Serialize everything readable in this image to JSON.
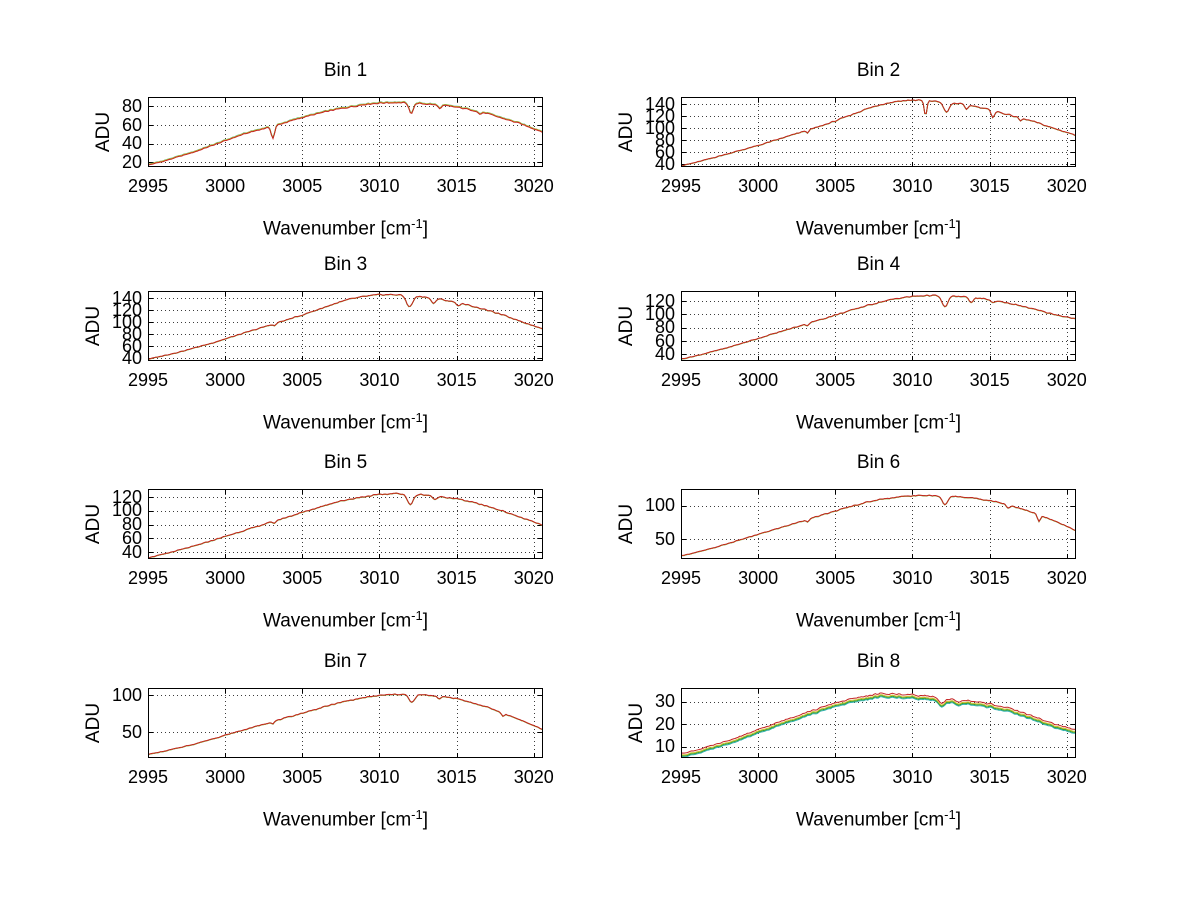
{
  "figure": {
    "background": "#ffffff",
    "text_color": "#000000",
    "axis_color": "#000000",
    "grid_color": "#3c3c3c",
    "grid_style": "dotted",
    "ylabel": "ADU",
    "xlabel_prefix": "Wavenumber [cm",
    "xlabel_sup": "-1",
    "xlabel_suffix": "]",
    "xticks": [
      2995,
      3000,
      3005,
      3010,
      3015,
      3020
    ],
    "xlim": [
      2995,
      3020.6
    ]
  },
  "chart_data": [
    {
      "type": "line",
      "title": "Bin 1",
      "ylabel": "ADU",
      "xlabel": "Wavenumber [cm^-1]",
      "ylim": [
        15,
        90
      ],
      "yticks": [
        20,
        40,
        60,
        80
      ],
      "x_start": 2995,
      "x_step": 1,
      "envelope": [
        17,
        21,
        26,
        31,
        37,
        43,
        49,
        54,
        58,
        63,
        68,
        72,
        76,
        79,
        82,
        83.5,
        84,
        83.5,
        82.5,
        81,
        79,
        76,
        72,
        67,
        62,
        56
      ],
      "dips": [
        {
          "x": 3003.1,
          "depth": 13,
          "width": 0.15
        },
        {
          "x": 3012.05,
          "depth": 11,
          "width": 0.2
        },
        {
          "x": 3013.9,
          "depth": 3.5,
          "width": 0.15
        },
        {
          "x": 3016.5,
          "depth": 2.5,
          "width": 0.15
        }
      ],
      "noise": 0.9,
      "series": [
        {
          "label": "trace-cyan",
          "color": "#2FAFAF",
          "offset": 0.9
        },
        {
          "label": "trace-green",
          "color": "#2E9E2E",
          "offset": 0.5
        },
        {
          "label": "trace-yellow",
          "color": "#CDBE2A",
          "offset": 0.65
        },
        {
          "label": "trace-red",
          "color": "#C42222",
          "offset": 0
        }
      ]
    },
    {
      "type": "line",
      "title": "Bin 2",
      "ylabel": "ADU",
      "xlabel": "Wavenumber [cm^-1]",
      "ylim": [
        35,
        152
      ],
      "yticks": [
        40,
        60,
        80,
        100,
        120,
        140
      ],
      "x_start": 2995,
      "x_step": 1,
      "envelope": [
        37,
        43,
        50,
        57,
        64,
        71,
        79,
        87,
        95,
        103,
        112,
        122,
        132,
        140,
        145,
        147,
        146,
        144,
        141,
        137,
        131,
        124,
        117,
        110,
        101,
        93
      ],
      "dips": [
        {
          "x": 3003.2,
          "depth": 4,
          "width": 0.12
        },
        {
          "x": 3010.85,
          "depth": 26,
          "width": 0.12
        },
        {
          "x": 3012.2,
          "depth": 17,
          "width": 0.25
        },
        {
          "x": 3013.5,
          "depth": 7,
          "width": 0.15
        },
        {
          "x": 3015.2,
          "depth": 11,
          "width": 0.15
        },
        {
          "x": 3017.0,
          "depth": 5,
          "width": 0.12
        }
      ],
      "noise": 1.3,
      "series": [
        {
          "label": "trace-cyan",
          "color": "#2FAFAF",
          "offset": -0.4
        },
        {
          "label": "trace-green",
          "color": "#2E9E2E",
          "offset": -0.25
        },
        {
          "label": "trace-yellow",
          "color": "#CDBE2A",
          "offset": -0.3
        },
        {
          "label": "trace-red",
          "color": "#C42222",
          "offset": 0
        }
      ]
    },
    {
      "type": "line",
      "title": "Bin 3",
      "ylabel": "ADU",
      "xlabel": "Wavenumber [cm^-1]",
      "ylim": [
        35,
        152
      ],
      "yticks": [
        40,
        60,
        80,
        100,
        120,
        140
      ],
      "x_start": 2995,
      "x_step": 1,
      "envelope": [
        38,
        44,
        50,
        57,
        64,
        72,
        80,
        88,
        96,
        104,
        112,
        121,
        130,
        138,
        143,
        146,
        146,
        144.5,
        142,
        138,
        133,
        127,
        120,
        112,
        103,
        94
      ],
      "dips": [
        {
          "x": 3003.2,
          "depth": 4,
          "width": 0.12
        },
        {
          "x": 3011.95,
          "depth": 19,
          "width": 0.28
        },
        {
          "x": 3013.5,
          "depth": 9,
          "width": 0.18
        },
        {
          "x": 3015.1,
          "depth": 5,
          "width": 0.15
        }
      ],
      "noise": 1.2,
      "series": [
        {
          "label": "trace-cyan",
          "color": "#2FAFAF",
          "offset": -0.4
        },
        {
          "label": "trace-green",
          "color": "#2E9E2E",
          "offset": -0.25
        },
        {
          "label": "trace-yellow",
          "color": "#CDBE2A",
          "offset": -0.3
        },
        {
          "label": "trace-red",
          "color": "#C42222",
          "offset": 0
        }
      ]
    },
    {
      "type": "line",
      "title": "Bin 4",
      "ylabel": "ADU",
      "xlabel": "Wavenumber [cm^-1]",
      "ylim": [
        30,
        135
      ],
      "yticks": [
        40,
        60,
        80,
        100,
        120
      ],
      "x_start": 2995,
      "x_step": 1,
      "envelope": [
        33,
        38,
        44,
        50,
        57,
        64,
        71,
        78,
        85,
        92,
        99,
        106,
        113,
        119,
        124,
        127,
        128.5,
        128,
        127,
        125,
        122,
        118,
        113,
        107,
        101,
        96
      ],
      "dips": [
        {
          "x": 3003.2,
          "depth": 3,
          "width": 0.12
        },
        {
          "x": 3012.1,
          "depth": 17,
          "width": 0.26
        },
        {
          "x": 3013.8,
          "depth": 7,
          "width": 0.18
        },
        {
          "x": 3015.2,
          "depth": 4,
          "width": 0.15
        }
      ],
      "noise": 1.1,
      "series": [
        {
          "label": "trace-cyan",
          "color": "#2FAFAF",
          "offset": -0.4
        },
        {
          "label": "trace-green",
          "color": "#2E9E2E",
          "offset": -0.25
        },
        {
          "label": "trace-yellow",
          "color": "#CDBE2A",
          "offset": -0.3
        },
        {
          "label": "trace-red",
          "color": "#C42222",
          "offset": 0
        }
      ]
    },
    {
      "type": "line",
      "title": "Bin 5",
      "ylabel": "ADU",
      "xlabel": "Wavenumber [cm^-1]",
      "ylim": [
        30,
        132
      ],
      "yticks": [
        40,
        60,
        80,
        100,
        120
      ],
      "x_start": 2995,
      "x_step": 1,
      "envelope": [
        32,
        37,
        43,
        49,
        56,
        63,
        70,
        77,
        84,
        91,
        98,
        105,
        112,
        117,
        121,
        124,
        125.5,
        125,
        123.5,
        121,
        118,
        113,
        107,
        100,
        92,
        84
      ],
      "dips": [
        {
          "x": 3003.2,
          "depth": 3,
          "width": 0.12
        },
        {
          "x": 3012.0,
          "depth": 16,
          "width": 0.26
        },
        {
          "x": 3013.6,
          "depth": 6,
          "width": 0.18
        }
      ],
      "noise": 1.1,
      "series": [
        {
          "label": "trace-cyan",
          "color": "#2FAFAF",
          "offset": -0.4
        },
        {
          "label": "trace-green",
          "color": "#2E9E2E",
          "offset": -0.25
        },
        {
          "label": "trace-yellow",
          "color": "#CDBE2A",
          "offset": -0.3
        },
        {
          "label": "trace-red",
          "color": "#C42222",
          "offset": 0
        }
      ]
    },
    {
      "type": "line",
      "title": "Bin 6",
      "ylabel": "ADU",
      "xlabel": "Wavenumber [cm^-1]",
      "ylim": [
        20,
        125
      ],
      "yticks": [
        50,
        100
      ],
      "x_start": 2995,
      "x_step": 1,
      "envelope": [
        25,
        30,
        36,
        43,
        50,
        57,
        64,
        71,
        78,
        85,
        92,
        99,
        105,
        110,
        113,
        115,
        115.5,
        115,
        113.5,
        111.5,
        108,
        103,
        96,
        88,
        79,
        69
      ],
      "dips": [
        {
          "x": 3003.2,
          "depth": 3,
          "width": 0.12
        },
        {
          "x": 3012.1,
          "depth": 13,
          "width": 0.26
        },
        {
          "x": 3016.2,
          "depth": 5,
          "width": 0.16
        },
        {
          "x": 3018.2,
          "depth": 10,
          "width": 0.13
        }
      ],
      "noise": 1.0,
      "series": [
        {
          "label": "trace-cyan",
          "color": "#2FAFAF",
          "offset": -0.4
        },
        {
          "label": "trace-green",
          "color": "#2E9E2E",
          "offset": -0.25
        },
        {
          "label": "trace-yellow",
          "color": "#CDBE2A",
          "offset": -0.3
        },
        {
          "label": "trace-red",
          "color": "#C42222",
          "offset": 0
        }
      ]
    },
    {
      "type": "line",
      "title": "Bin 7",
      "ylabel": "ADU",
      "xlabel": "Wavenumber [cm^-1]",
      "ylim": [
        15,
        110
      ],
      "yticks": [
        50,
        100
      ],
      "x_start": 2995,
      "x_step": 1,
      "envelope": [
        20,
        24,
        29,
        34,
        40,
        46,
        52,
        58,
        64,
        70,
        76,
        82,
        88,
        93,
        97,
        100,
        101.5,
        101.5,
        100.5,
        99,
        96,
        90,
        84,
        76,
        68,
        59
      ],
      "dips": [
        {
          "x": 3003.1,
          "depth": 3,
          "width": 0.12
        },
        {
          "x": 3012.1,
          "depth": 11,
          "width": 0.26
        },
        {
          "x": 3013.9,
          "depth": 4,
          "width": 0.16
        },
        {
          "x": 3018.0,
          "depth": 4,
          "width": 0.13
        }
      ],
      "noise": 0.9,
      "series": [
        {
          "label": "trace-cyan",
          "color": "#2FAFAF",
          "offset": -0.4
        },
        {
          "label": "trace-green",
          "color": "#2E9E2E",
          "offset": -0.25
        },
        {
          "label": "trace-yellow",
          "color": "#CDBE2A",
          "offset": -0.3
        },
        {
          "label": "trace-red",
          "color": "#C42222",
          "offset": 0
        }
      ]
    },
    {
      "type": "line",
      "title": "Bin 8",
      "ylabel": "ADU",
      "xlabel": "Wavenumber [cm^-1]",
      "ylim": [
        5,
        36
      ],
      "yticks": [
        10,
        20,
        30
      ],
      "x_start": 2995,
      "x_step": 1,
      "envelope": [
        7,
        8.5,
        10.5,
        12.5,
        15,
        17.5,
        20,
        22.5,
        25,
        27,
        29.5,
        31,
        32.5,
        33.5,
        33.3,
        33,
        32.5,
        31.5,
        31,
        30,
        29,
        27.5,
        25.5,
        23,
        20.5,
        18.5
      ],
      "dips": [
        {
          "x": 3011.9,
          "depth": 2.5,
          "width": 0.3
        },
        {
          "x": 3013.0,
          "depth": 1.5,
          "width": 0.2
        }
      ],
      "noise": 0.5,
      "series": [
        {
          "label": "trace-cyan",
          "color": "#2FAFAF",
          "offset": -1.7
        },
        {
          "label": "trace-green",
          "color": "#2E9E2E",
          "offset": -1.25
        },
        {
          "label": "trace-yellow",
          "color": "#CDBE2A",
          "offset": -0.8
        },
        {
          "label": "trace-red",
          "color": "#C42222",
          "offset": 0
        }
      ]
    }
  ]
}
